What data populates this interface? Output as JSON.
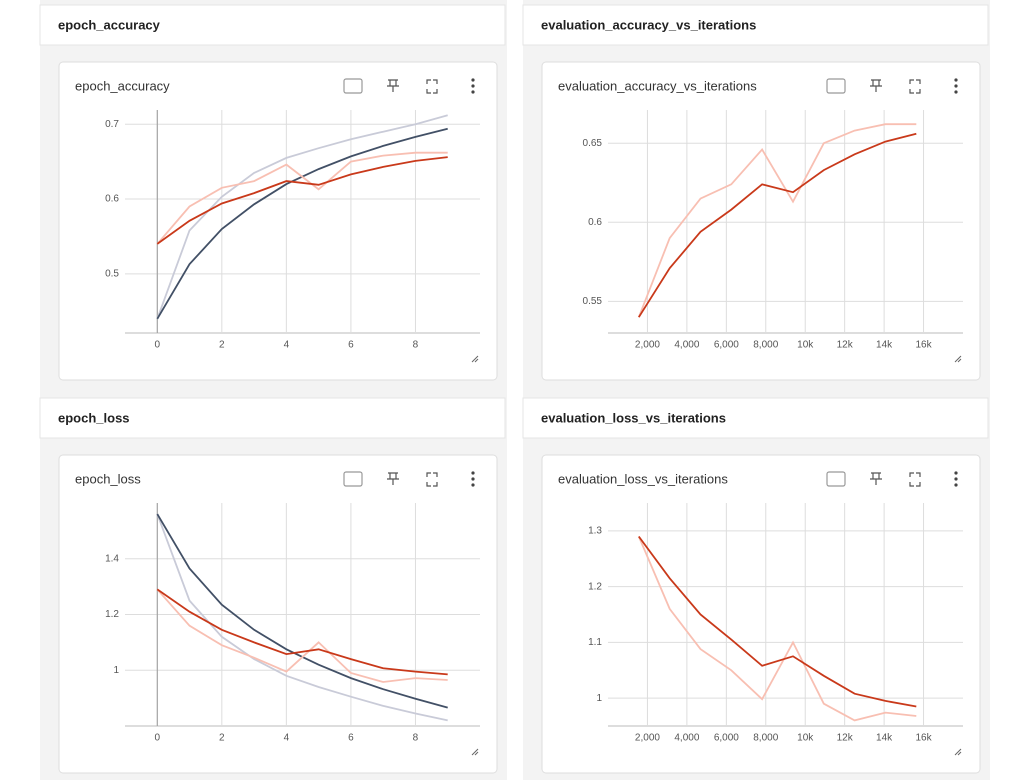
{
  "chart_data": [
    {
      "type": "line",
      "heading": "epoch_accuracy",
      "title": "epoch_accuracy",
      "x": [
        0,
        1,
        2,
        3,
        4,
        5,
        6,
        7,
        8,
        9
      ],
      "series": [
        {
          "color": "#c9cbd8",
          "values": [
            0.44,
            0.558,
            0.603,
            0.635,
            0.655,
            0.668,
            0.68,
            0.69,
            0.7,
            0.712
          ]
        },
        {
          "color": "#425066",
          "values": [
            0.44,
            0.513,
            0.56,
            0.593,
            0.62,
            0.64,
            0.657,
            0.671,
            0.683,
            0.694
          ]
        },
        {
          "color": "#f8bfb2",
          "values": [
            0.54,
            0.59,
            0.615,
            0.624,
            0.646,
            0.613,
            0.65,
            0.658,
            0.662,
            0.662
          ]
        },
        {
          "color": "#c9391a",
          "values": [
            0.54,
            0.571,
            0.594,
            0.608,
            0.624,
            0.619,
            0.633,
            0.643,
            0.651,
            0.656
          ]
        }
      ],
      "xlim": [
        -1,
        10
      ],
      "xticks": [
        0,
        2,
        4,
        6,
        8
      ],
      "ylim": [
        0.421,
        0.719
      ],
      "yticks": [
        0.5,
        0.6,
        0.7
      ],
      "grid": true
    },
    {
      "type": "line",
      "heading": "evaluation_accuracy_vs_iterations",
      "title": "evaluation_accuracy_vs_iterations",
      "x": [
        1563,
        3126,
        4689,
        6252,
        7815,
        9378,
        10941,
        12504,
        14067,
        15630
      ],
      "series": [
        {
          "color": "#f8bfb2",
          "values": [
            0.54,
            0.59,
            0.615,
            0.624,
            0.646,
            0.613,
            0.65,
            0.658,
            0.662,
            0.662
          ]
        },
        {
          "color": "#c9391a",
          "values": [
            0.54,
            0.571,
            0.594,
            0.608,
            0.624,
            0.619,
            0.633,
            0.643,
            0.651,
            0.656
          ]
        }
      ],
      "xlim": [
        0,
        18000
      ],
      "xticks": [
        {
          "value": 2000,
          "label": "2,000"
        },
        {
          "value": 4000,
          "label": "4,000"
        },
        {
          "value": 6000,
          "label": "6,000"
        },
        {
          "value": 8000,
          "label": "8,000"
        },
        {
          "value": 10000,
          "label": "10k"
        },
        {
          "value": 12000,
          "label": "12k"
        },
        {
          "value": 14000,
          "label": "14k"
        },
        {
          "value": 16000,
          "label": "16k"
        }
      ],
      "ylim": [
        0.53,
        0.671
      ],
      "yticks": [
        0.55,
        0.6,
        0.65
      ],
      "grid": true
    },
    {
      "type": "line",
      "heading": "epoch_loss",
      "title": "epoch_loss",
      "x": [
        0,
        1,
        2,
        3,
        4,
        5,
        6,
        7,
        8,
        9
      ],
      "series": [
        {
          "color": "#c9cbd8",
          "values": [
            1.56,
            1.25,
            1.12,
            1.04,
            0.98,
            0.94,
            0.905,
            0.872,
            0.845,
            0.82
          ]
        },
        {
          "color": "#425066",
          "values": [
            1.56,
            1.365,
            1.235,
            1.145,
            1.075,
            1.02,
            0.972,
            0.932,
            0.898,
            0.866
          ]
        },
        {
          "color": "#f8bfb2",
          "values": [
            1.29,
            1.16,
            1.09,
            1.045,
            0.995,
            1.1,
            0.99,
            0.958,
            0.972,
            0.965
          ]
        },
        {
          "color": "#c9391a",
          "values": [
            1.29,
            1.21,
            1.145,
            1.1,
            1.058,
            1.075,
            1.04,
            1.007,
            0.995,
            0.985
          ]
        }
      ],
      "xlim": [
        -1,
        10
      ],
      "xticks": [
        0,
        2,
        4,
        6,
        8
      ],
      "ylim": [
        0.8,
        1.6
      ],
      "yticks": [
        1,
        1.2,
        1.4
      ],
      "grid": true
    },
    {
      "type": "line",
      "heading": "evaluation_loss_vs_iterations",
      "title": "evaluation_loss_vs_iterations",
      "x": [
        1563,
        3126,
        4689,
        6252,
        7815,
        9378,
        10941,
        12504,
        14067,
        15630
      ],
      "series": [
        {
          "color": "#f8bfb2",
          "values": [
            1.29,
            1.16,
            1.088,
            1.05,
            0.998,
            1.1,
            0.99,
            0.96,
            0.974,
            0.968
          ]
        },
        {
          "color": "#c9391a",
          "values": [
            1.29,
            1.215,
            1.15,
            1.105,
            1.058,
            1.075,
            1.04,
            1.008,
            0.995,
            0.985
          ]
        }
      ],
      "xlim": [
        0,
        18000
      ],
      "xticks": [
        {
          "value": 2000,
          "label": "2,000"
        },
        {
          "value": 4000,
          "label": "4,000"
        },
        {
          "value": 6000,
          "label": "6,000"
        },
        {
          "value": 8000,
          "label": "8,000"
        },
        {
          "value": 10000,
          "label": "10k"
        },
        {
          "value": 12000,
          "label": "12k"
        },
        {
          "value": 14000,
          "label": "14k"
        },
        {
          "value": 16000,
          "label": "16k"
        }
      ],
      "ylim": [
        0.95,
        1.35
      ],
      "yticks": [
        1,
        1.1,
        1.2,
        1.3
      ],
      "grid": true
    }
  ]
}
